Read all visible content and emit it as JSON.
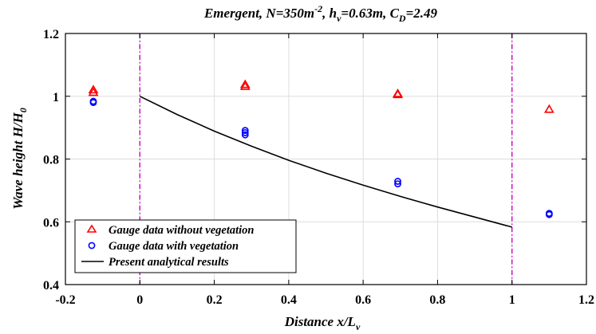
{
  "chart_data": {
    "type": "scatter",
    "title": {
      "prefix": "Emergent, N=350m",
      "prefix_sup": "-2",
      "mid1": ", h",
      "mid1_sub": "v",
      "mid2": "=0.63m, C",
      "mid2_sub": "D",
      "suffix": "=2.49"
    },
    "xlabel": {
      "main": "Distance  x/L",
      "sub": "v"
    },
    "ylabel": {
      "main": "Wave height  H/H",
      "sub": "0"
    },
    "xlim": [
      -0.2,
      1.2
    ],
    "ylim": [
      0.4,
      1.2
    ],
    "xticks": [
      -0.2,
      0,
      0.2,
      0.4,
      0.6,
      0.8,
      1,
      1.2
    ],
    "xtick_labels": [
      "-0.2",
      "0",
      "0.2",
      "0.4",
      "0.6",
      "0.8",
      "1",
      "1.2"
    ],
    "yticks": [
      0.4,
      0.6,
      0.8,
      1.0,
      1.2
    ],
    "ytick_labels": [
      "0.4",
      "0.6",
      "0.8",
      "1",
      "1.2"
    ],
    "grid": true,
    "legend_position": "bottom-left",
    "vertical_lines": {
      "x": [
        0,
        1
      ],
      "color": "#cc00cc"
    },
    "series": [
      {
        "name": "Gauge data without vegetation",
        "marker": "triangle",
        "color": "#ff0000",
        "points": [
          [
            -0.125,
            1.02
          ],
          [
            -0.125,
            1.012
          ],
          [
            0.283,
            1.037
          ],
          [
            0.283,
            1.031
          ],
          [
            0.693,
            1.008
          ],
          [
            0.693,
            1.005
          ],
          [
            1.1,
            0.958
          ]
        ]
      },
      {
        "name": "Gauge data with vegetation",
        "marker": "circle",
        "color": "#0000ff",
        "points": [
          [
            -0.125,
            0.984
          ],
          [
            -0.125,
            0.98
          ],
          [
            0.283,
            0.891
          ],
          [
            0.283,
            0.884
          ],
          [
            0.283,
            0.877
          ],
          [
            0.693,
            0.729
          ],
          [
            0.693,
            0.721
          ],
          [
            1.1,
            0.627
          ],
          [
            1.1,
            0.623
          ]
        ]
      },
      {
        "name": "Present analytical results",
        "marker": "line",
        "color": "#000000",
        "points": [
          [
            0,
            1.0
          ],
          [
            0.1,
            0.942
          ],
          [
            0.2,
            0.889
          ],
          [
            0.3,
            0.841
          ],
          [
            0.4,
            0.796
          ],
          [
            0.5,
            0.755
          ],
          [
            0.6,
            0.717
          ],
          [
            0.7,
            0.681
          ],
          [
            0.8,
            0.647
          ],
          [
            0.9,
            0.615
          ],
          [
            1.0,
            0.583
          ]
        ]
      }
    ]
  }
}
